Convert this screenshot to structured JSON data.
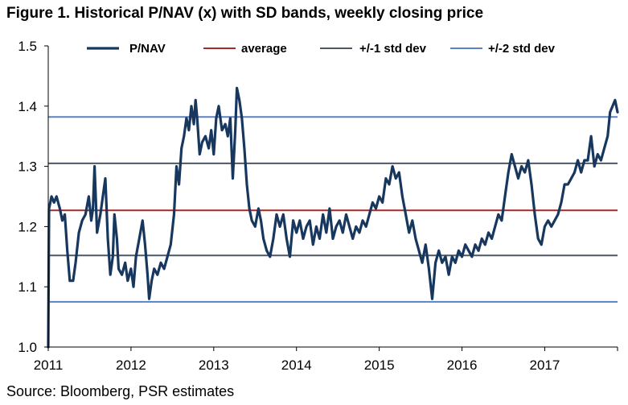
{
  "title": "Figure 1. Historical P/NAV (x) with SD bands, weekly closing price",
  "source": "Source: Bloomberg, PSR estimates",
  "colors": {
    "pnav": "#17375E",
    "average": "#A52A2A",
    "sd1": "#4D5866",
    "sd2": "#5A82C8",
    "axis": "#000000"
  },
  "chart_data": {
    "type": "line",
    "x_ticks": [
      "2011",
      "2012",
      "2013",
      "2014",
      "2015",
      "2016",
      "2017"
    ],
    "xlim": [
      2011.0,
      2017.88
    ],
    "ylim": [
      1.0,
      1.5
    ],
    "y_ticks": [
      "1.0",
      "1.1",
      "1.2",
      "1.3",
      "1.4",
      "1.5"
    ],
    "grid": false,
    "legend_position": "top",
    "legend": [
      {
        "label": "P/NAV",
        "color_key": "pnav"
      },
      {
        "label": "average",
        "color_key": "average"
      },
      {
        "label": "+/-1 std dev",
        "color_key": "sd1"
      },
      {
        "label": "+/-2 std dev",
        "color_key": "sd2"
      }
    ],
    "reference_lines": [
      {
        "key": "average",
        "value": 1.227
      },
      {
        "key": "sd1",
        "value": 1.152
      },
      {
        "key": "sd1",
        "value": 1.305
      },
      {
        "key": "sd2",
        "value": 1.075
      },
      {
        "key": "sd2",
        "value": 1.382
      }
    ],
    "series": [
      {
        "name": "P/NAV",
        "points": [
          [
            2011.0,
            1.0
          ],
          [
            2011.01,
            1.23
          ],
          [
            2011.04,
            1.25
          ],
          [
            2011.07,
            1.24
          ],
          [
            2011.1,
            1.25
          ],
          [
            2011.14,
            1.23
          ],
          [
            2011.17,
            1.21
          ],
          [
            2011.2,
            1.22
          ],
          [
            2011.23,
            1.16
          ],
          [
            2011.26,
            1.11
          ],
          [
            2011.3,
            1.11
          ],
          [
            2011.33,
            1.14
          ],
          [
            2011.37,
            1.19
          ],
          [
            2011.41,
            1.21
          ],
          [
            2011.45,
            1.22
          ],
          [
            2011.49,
            1.25
          ],
          [
            2011.52,
            1.21
          ],
          [
            2011.54,
            1.23
          ],
          [
            2011.56,
            1.3
          ],
          [
            2011.59,
            1.19
          ],
          [
            2011.63,
            1.22
          ],
          [
            2011.66,
            1.25
          ],
          [
            2011.69,
            1.28
          ],
          [
            2011.72,
            1.18
          ],
          [
            2011.75,
            1.12
          ],
          [
            2011.78,
            1.15
          ],
          [
            2011.8,
            1.22
          ],
          [
            2011.83,
            1.18
          ],
          [
            2011.85,
            1.13
          ],
          [
            2011.89,
            1.12
          ],
          [
            2011.93,
            1.14
          ],
          [
            2011.96,
            1.11
          ],
          [
            2012.0,
            1.13
          ],
          [
            2012.03,
            1.1
          ],
          [
            2012.06,
            1.15
          ],
          [
            2012.1,
            1.18
          ],
          [
            2012.14,
            1.21
          ],
          [
            2012.17,
            1.17
          ],
          [
            2012.2,
            1.12
          ],
          [
            2012.22,
            1.08
          ],
          [
            2012.25,
            1.11
          ],
          [
            2012.28,
            1.13
          ],
          [
            2012.32,
            1.12
          ],
          [
            2012.36,
            1.14
          ],
          [
            2012.4,
            1.13
          ],
          [
            2012.44,
            1.15
          ],
          [
            2012.48,
            1.17
          ],
          [
            2012.52,
            1.22
          ],
          [
            2012.55,
            1.3
          ],
          [
            2012.58,
            1.27
          ],
          [
            2012.61,
            1.33
          ],
          [
            2012.64,
            1.35
          ],
          [
            2012.67,
            1.38
          ],
          [
            2012.7,
            1.36
          ],
          [
            2012.73,
            1.4
          ],
          [
            2012.76,
            1.37
          ],
          [
            2012.78,
            1.41
          ],
          [
            2012.8,
            1.38
          ],
          [
            2012.83,
            1.32
          ],
          [
            2012.86,
            1.34
          ],
          [
            2012.9,
            1.35
          ],
          [
            2012.94,
            1.33
          ],
          [
            2012.97,
            1.36
          ],
          [
            2013.0,
            1.32
          ],
          [
            2013.03,
            1.38
          ],
          [
            2013.06,
            1.4
          ],
          [
            2013.1,
            1.36
          ],
          [
            2013.14,
            1.37
          ],
          [
            2013.17,
            1.35
          ],
          [
            2013.2,
            1.38
          ],
          [
            2013.23,
            1.28
          ],
          [
            2013.26,
            1.36
          ],
          [
            2013.28,
            1.43
          ],
          [
            2013.31,
            1.41
          ],
          [
            2013.34,
            1.38
          ],
          [
            2013.37,
            1.33
          ],
          [
            2013.4,
            1.27
          ],
          [
            2013.43,
            1.23
          ],
          [
            2013.46,
            1.21
          ],
          [
            2013.5,
            1.2
          ],
          [
            2013.54,
            1.23
          ],
          [
            2013.57,
            1.21
          ],
          [
            2013.6,
            1.18
          ],
          [
            2013.64,
            1.16
          ],
          [
            2013.68,
            1.15
          ],
          [
            2013.72,
            1.18
          ],
          [
            2013.76,
            1.22
          ],
          [
            2013.8,
            1.2
          ],
          [
            2013.84,
            1.22
          ],
          [
            2013.88,
            1.18
          ],
          [
            2013.92,
            1.15
          ],
          [
            2013.96,
            1.21
          ],
          [
            2014.0,
            1.19
          ],
          [
            2014.04,
            1.21
          ],
          [
            2014.08,
            1.18
          ],
          [
            2014.12,
            1.2
          ],
          [
            2014.16,
            1.21
          ],
          [
            2014.2,
            1.17
          ],
          [
            2014.24,
            1.2
          ],
          [
            2014.28,
            1.18
          ],
          [
            2014.32,
            1.22
          ],
          [
            2014.36,
            1.19
          ],
          [
            2014.4,
            1.23
          ],
          [
            2014.44,
            1.18
          ],
          [
            2014.48,
            1.2
          ],
          [
            2014.52,
            1.21
          ],
          [
            2014.56,
            1.19
          ],
          [
            2014.6,
            1.22
          ],
          [
            2014.64,
            1.2
          ],
          [
            2014.68,
            1.18
          ],
          [
            2014.72,
            1.2
          ],
          [
            2014.76,
            1.19
          ],
          [
            2014.8,
            1.21
          ],
          [
            2014.84,
            1.2
          ],
          [
            2014.88,
            1.22
          ],
          [
            2014.92,
            1.24
          ],
          [
            2014.96,
            1.23
          ],
          [
            2015.0,
            1.25
          ],
          [
            2015.04,
            1.24
          ],
          [
            2015.08,
            1.28
          ],
          [
            2015.12,
            1.27
          ],
          [
            2015.16,
            1.3
          ],
          [
            2015.2,
            1.28
          ],
          [
            2015.24,
            1.29
          ],
          [
            2015.28,
            1.25
          ],
          [
            2015.32,
            1.22
          ],
          [
            2015.36,
            1.19
          ],
          [
            2015.4,
            1.21
          ],
          [
            2015.44,
            1.18
          ],
          [
            2015.48,
            1.16
          ],
          [
            2015.52,
            1.14
          ],
          [
            2015.56,
            1.17
          ],
          [
            2015.6,
            1.13
          ],
          [
            2015.64,
            1.08
          ],
          [
            2015.68,
            1.14
          ],
          [
            2015.72,
            1.16
          ],
          [
            2015.76,
            1.14
          ],
          [
            2015.8,
            1.15
          ],
          [
            2015.84,
            1.12
          ],
          [
            2015.88,
            1.15
          ],
          [
            2015.92,
            1.14
          ],
          [
            2015.96,
            1.16
          ],
          [
            2016.0,
            1.15
          ],
          [
            2016.04,
            1.17
          ],
          [
            2016.08,
            1.16
          ],
          [
            2016.12,
            1.15
          ],
          [
            2016.16,
            1.17
          ],
          [
            2016.2,
            1.16
          ],
          [
            2016.24,
            1.18
          ],
          [
            2016.28,
            1.17
          ],
          [
            2016.32,
            1.19
          ],
          [
            2016.36,
            1.18
          ],
          [
            2016.4,
            1.2
          ],
          [
            2016.44,
            1.22
          ],
          [
            2016.48,
            1.21
          ],
          [
            2016.52,
            1.25
          ],
          [
            2016.56,
            1.29
          ],
          [
            2016.6,
            1.32
          ],
          [
            2016.64,
            1.3
          ],
          [
            2016.68,
            1.28
          ],
          [
            2016.72,
            1.3
          ],
          [
            2016.76,
            1.29
          ],
          [
            2016.8,
            1.31
          ],
          [
            2016.84,
            1.27
          ],
          [
            2016.88,
            1.22
          ],
          [
            2016.92,
            1.18
          ],
          [
            2016.96,
            1.17
          ],
          [
            2017.0,
            1.2
          ],
          [
            2017.04,
            1.21
          ],
          [
            2017.08,
            1.2
          ],
          [
            2017.12,
            1.21
          ],
          [
            2017.16,
            1.22
          ],
          [
            2017.2,
            1.24
          ],
          [
            2017.24,
            1.27
          ],
          [
            2017.28,
            1.27
          ],
          [
            2017.32,
            1.28
          ],
          [
            2017.36,
            1.29
          ],
          [
            2017.4,
            1.31
          ],
          [
            2017.44,
            1.29
          ],
          [
            2017.48,
            1.31
          ],
          [
            2017.52,
            1.31
          ],
          [
            2017.56,
            1.35
          ],
          [
            2017.6,
            1.3
          ],
          [
            2017.64,
            1.32
          ],
          [
            2017.68,
            1.31
          ],
          [
            2017.72,
            1.33
          ],
          [
            2017.76,
            1.35
          ],
          [
            2017.79,
            1.39
          ],
          [
            2017.82,
            1.4
          ],
          [
            2017.85,
            1.41
          ],
          [
            2017.88,
            1.39
          ]
        ]
      }
    ]
  }
}
